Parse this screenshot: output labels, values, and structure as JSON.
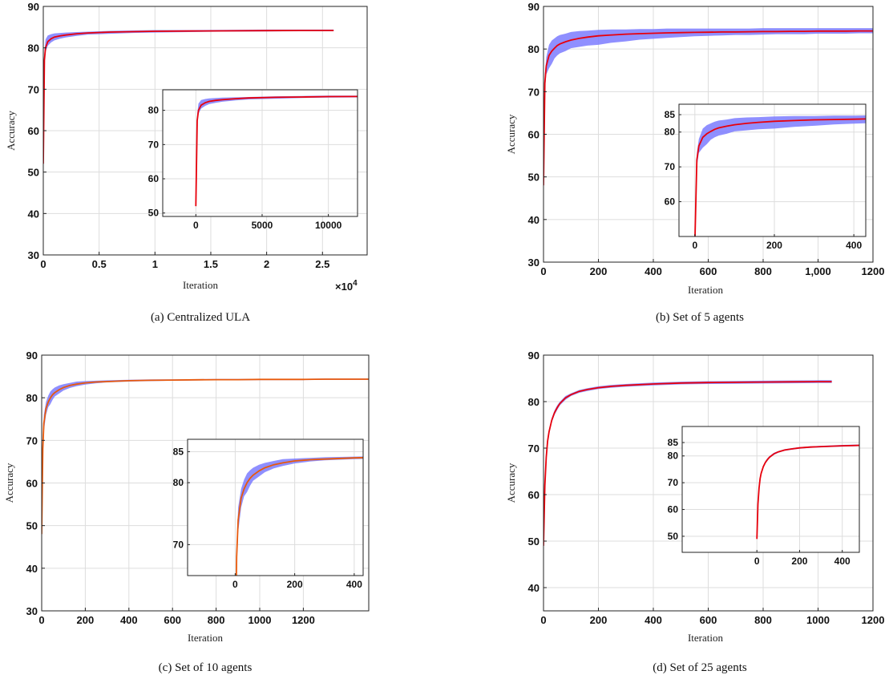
{
  "chart_data": [
    {
      "id": "a",
      "type": "line",
      "caption": "(a) Centralized ULA",
      "xlabel": "Iteration",
      "ylabel": "Accuracy",
      "x_multiplier_label": "×10^4",
      "xlim": [
        0,
        29000
      ],
      "ylim": [
        30,
        90
      ],
      "xticks": [
        0,
        5000,
        10000,
        15000,
        20000,
        25000
      ],
      "xticklabels": [
        "0",
        "0.5",
        "1",
        "1.5",
        "2",
        "2.5"
      ],
      "yticks": [
        30,
        40,
        50,
        60,
        70,
        80,
        90
      ],
      "yticklabels": [
        "30",
        "40",
        "50",
        "60",
        "70",
        "80",
        "90"
      ],
      "grid": true,
      "band_color": "#7b7bff",
      "line_color": "#e8000b",
      "series": [
        {
          "x": [
            0,
            100,
            200,
            400,
            700,
            1000,
            1500,
            2000,
            3000,
            4000,
            6000,
            8000,
            10000,
            13000,
            16000,
            20000,
            23000,
            26000
          ],
          "y": [
            52,
            77,
            80,
            81.5,
            82.2,
            82.6,
            82.9,
            83.1,
            83.4,
            83.6,
            83.8,
            83.9,
            84.0,
            84.05,
            84.1,
            84.15,
            84.2,
            84.2
          ],
          "lower": [
            52,
            76,
            79,
            80.5,
            81.3,
            81.8,
            82.2,
            82.5,
            82.9,
            83.2,
            83.4,
            83.6,
            83.7,
            83.8,
            83.9,
            83.95,
            84.0,
            84.0
          ],
          "upper": [
            52,
            79,
            82,
            83.0,
            83.3,
            83.5,
            83.6,
            83.7,
            83.8,
            83.9,
            84.1,
            84.2,
            84.3,
            84.3,
            84.35,
            84.4,
            84.4,
            84.4
          ]
        }
      ],
      "inset": {
        "xlim": [
          -2500,
          12200
        ],
        "ylim": [
          49,
          86
        ],
        "xticks": [
          0,
          5000,
          10000
        ],
        "xticklabels": [
          "0",
          "5000",
          "10000"
        ],
        "yticks": [
          50,
          60,
          70,
          80
        ],
        "yticklabels": [
          "50",
          "60",
          "70",
          "80"
        ]
      }
    },
    {
      "id": "b",
      "type": "line",
      "caption": "(b) Set of 5 agents",
      "xlabel": "Iteration",
      "ylabel": "Accuracy",
      "xlim": [
        0,
        1200
      ],
      "ylim": [
        30,
        90
      ],
      "xticks": [
        0,
        200,
        400,
        600,
        800,
        1000,
        1200
      ],
      "xticklabels": [
        "0",
        "200",
        "400",
        "600",
        "800",
        "1,000",
        "1200"
      ],
      "yticks": [
        30,
        40,
        50,
        60,
        70,
        80,
        90
      ],
      "yticklabels": [
        "30",
        "40",
        "50",
        "60",
        "70",
        "80",
        "90"
      ],
      "grid": true,
      "band_color": "#7b7bff",
      "line_color": "#e8000b",
      "series": [
        {
          "x": [
            0,
            5,
            10,
            20,
            30,
            40,
            50,
            60,
            80,
            100,
            130,
            160,
            200,
            250,
            300,
            350,
            400,
            450,
            500,
            550,
            600,
            650,
            700,
            750,
            800,
            850,
            900,
            950,
            1000,
            1050,
            1100,
            1150,
            1200
          ],
          "y": [
            48,
            72,
            76,
            78.5,
            79.5,
            80.2,
            80.8,
            81.2,
            81.7,
            82.1,
            82.5,
            82.8,
            83.1,
            83.3,
            83.5,
            83.6,
            83.7,
            83.8,
            83.85,
            83.9,
            83.95,
            84.0,
            84.0,
            84.05,
            84.1,
            84.1,
            84.15,
            84.15,
            84.2,
            84.2,
            84.2,
            84.25,
            84.25
          ],
          "lower": [
            48,
            70,
            74,
            75.5,
            76.5,
            77.8,
            78.5,
            79.0,
            79.5,
            80.2,
            80.5,
            80.8,
            81.0,
            81.5,
            81.8,
            82.2,
            82.4,
            82.6,
            82.8,
            83.0,
            83.1,
            83.2,
            83.3,
            83.3,
            83.4,
            83.5,
            83.5,
            83.5,
            83.6,
            83.6,
            83.6,
            83.7,
            83.7
          ],
          "upper": [
            48,
            74,
            78,
            81,
            82,
            82.5,
            83.0,
            83.3,
            83.6,
            84.0,
            84.2,
            84.3,
            84.5,
            84.6,
            84.6,
            84.7,
            84.7,
            84.8,
            84.8,
            84.8,
            84.8,
            84.8,
            84.8,
            84.8,
            84.9,
            84.9,
            84.9,
            84.9,
            84.9,
            84.9,
            84.9,
            84.9,
            84.9
          ]
        }
      ],
      "inset": {
        "xlim": [
          -40,
          430
        ],
        "ylim": [
          50,
          88
        ],
        "xticks": [
          0,
          200,
          400
        ],
        "xticklabels": [
          "0",
          "200",
          "400"
        ],
        "yticks": [
          60,
          70,
          80,
          85
        ],
        "yticklabels": [
          "60",
          "70",
          "80",
          "85"
        ]
      }
    },
    {
      "id": "c",
      "type": "line",
      "caption": "(c) Set of 10 agents",
      "xlabel": "Iteration",
      "ylabel": "Accuracy",
      "xlim": [
        0,
        1500
      ],
      "ylim": [
        30,
        90
      ],
      "xticks": [
        0,
        200,
        400,
        600,
        800,
        1000,
        1200
      ],
      "xticklabels": [
        "0",
        "200",
        "400",
        "600",
        "800",
        "1000",
        "1200"
      ],
      "yticks": [
        30,
        40,
        50,
        60,
        70,
        80,
        90
      ],
      "yticklabels": [
        "30",
        "40",
        "50",
        "60",
        "70",
        "80",
        "90"
      ],
      "grid": true,
      "band_color": "#7b7bff",
      "line_color": "#e8590b",
      "series": [
        {
          "x": [
            0,
            5,
            10,
            20,
            30,
            40,
            50,
            60,
            80,
            100,
            130,
            160,
            200,
            250,
            300,
            400,
            500,
            600,
            700,
            800,
            900,
            1000,
            1100,
            1200,
            1300,
            1400,
            1500
          ],
          "y": [
            48,
            68,
            74,
            77.5,
            79.0,
            80.0,
            80.7,
            81.2,
            81.9,
            82.4,
            82.9,
            83.2,
            83.5,
            83.7,
            83.8,
            84.0,
            84.1,
            84.15,
            84.2,
            84.25,
            84.25,
            84.3,
            84.3,
            84.3,
            84.35,
            84.35,
            84.35
          ],
          "lower": [
            47,
            66,
            72,
            76.0,
            77.8,
            78.5,
            79.5,
            80.3,
            81.0,
            81.7,
            82.3,
            82.7,
            83.1,
            83.4,
            83.6,
            83.8,
            83.9,
            84.0,
            84.05,
            84.1,
            84.1,
            84.15,
            84.15,
            84.15,
            84.2,
            84.2,
            84.2
          ],
          "upper": [
            49,
            70,
            76,
            79.0,
            80.5,
            81.5,
            82.0,
            82.4,
            82.9,
            83.2,
            83.5,
            83.8,
            83.9,
            84.0,
            84.1,
            84.2,
            84.3,
            84.3,
            84.35,
            84.4,
            84.4,
            84.45,
            84.45,
            84.45,
            84.5,
            84.5,
            84.5
          ]
        }
      ],
      "inset": {
        "xlim": [
          -160,
          430
        ],
        "ylim": [
          65,
          87
        ],
        "xticks": [
          0,
          200,
          400
        ],
        "xticklabels": [
          "0",
          "200",
          "400"
        ],
        "yticks": [
          70,
          80,
          85
        ],
        "yticklabels": [
          "70",
          "80",
          "85"
        ]
      }
    },
    {
      "id": "d",
      "type": "line",
      "caption": "(d) Set of 25 agents",
      "xlabel": "Iteration",
      "ylabel": "Accuracy",
      "xlim": [
        0,
        1200
      ],
      "ylim": [
        35,
        90
      ],
      "xticks": [
        0,
        200,
        400,
        600,
        800,
        1000,
        1200
      ],
      "xticklabels": [
        "0",
        "200",
        "400",
        "600",
        "800",
        "1000",
        "1200"
      ],
      "yticks": [
        40,
        50,
        60,
        70,
        80,
        90
      ],
      "yticklabels": [
        "40",
        "50",
        "60",
        "70",
        "80",
        "90"
      ],
      "grid": true,
      "band_color": "#7b7bff",
      "line_color": "#e8000b",
      "series": [
        {
          "x": [
            0,
            5,
            10,
            15,
            20,
            30,
            40,
            50,
            60,
            80,
            100,
            130,
            160,
            200,
            250,
            300,
            400,
            500,
            600,
            700,
            800,
            900,
            1000,
            1050
          ],
          "y": [
            49,
            62,
            68,
            71.5,
            73.5,
            76.0,
            77.6,
            78.7,
            79.6,
            80.8,
            81.5,
            82.2,
            82.6,
            83.0,
            83.3,
            83.5,
            83.8,
            84.0,
            84.1,
            84.15,
            84.2,
            84.25,
            84.3,
            84.3
          ],
          "lower": [
            48.3,
            61.5,
            67.5,
            71.0,
            73.0,
            75.5,
            77.1,
            78.2,
            79.2,
            80.4,
            81.2,
            81.9,
            82.3,
            82.7,
            83.0,
            83.2,
            83.5,
            83.7,
            83.8,
            83.85,
            83.9,
            83.95,
            84.0,
            84.0
          ],
          "upper": [
            49.5,
            62.5,
            68.5,
            72.0,
            74.0,
            76.5,
            78.1,
            79.2,
            80.0,
            81.2,
            81.8,
            82.5,
            82.9,
            83.3,
            83.6,
            83.8,
            84.1,
            84.3,
            84.4,
            84.45,
            84.5,
            84.55,
            84.6,
            84.6
          ]
        }
      ],
      "inset": {
        "xlim": [
          -350,
          480
        ],
        "ylim": [
          44,
          91
        ],
        "xticks": [
          0,
          200,
          400
        ],
        "xticklabels": [
          "0",
          "200",
          "400"
        ],
        "yticks": [
          50,
          60,
          70,
          80,
          85
        ],
        "yticklabels": [
          "50",
          "60",
          "70",
          "80",
          "85"
        ]
      }
    }
  ]
}
